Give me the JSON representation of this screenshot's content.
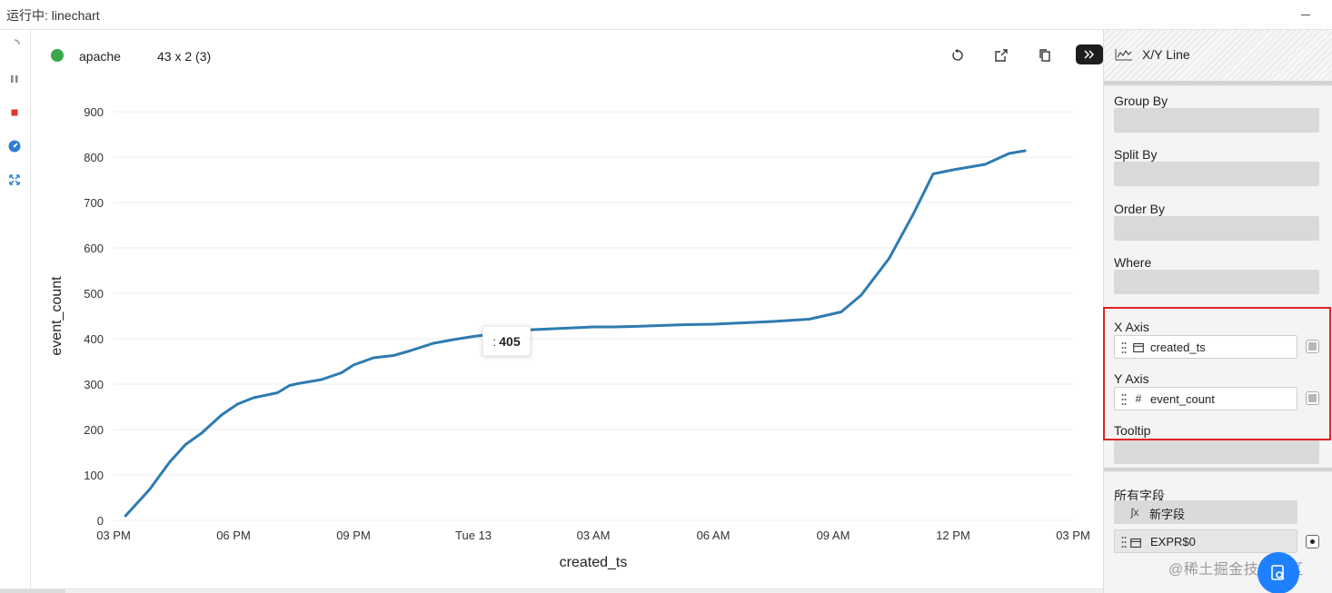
{
  "window": {
    "title": "运行中: linechart"
  },
  "header": {
    "datasource": "apache",
    "shape": "43 x 2 (3)",
    "status_color": "#3aa84a"
  },
  "chart_data": {
    "type": "line",
    "xlabel": "created_ts",
    "ylabel": "event_count",
    "ylim": [
      0,
      900
    ],
    "yticks": [
      "0",
      "100",
      "200",
      "300",
      "400",
      "500",
      "600",
      "700",
      "800",
      "900"
    ],
    "xticks": [
      "03 PM",
      "06 PM",
      "09 PM",
      "Tue 13",
      "03 AM",
      "06 AM",
      "09 AM",
      "12 PM",
      "03 PM"
    ],
    "xlim_hours": [
      0,
      24
    ],
    "grid": true,
    "series": [
      {
        "color": "#2e7bb0",
        "x": [
          0.3,
          0.9,
          1.4,
          1.8,
          2.2,
          2.7,
          3.1,
          3.5,
          4.1,
          4.4,
          4.6,
          5.2,
          5.7,
          6.0,
          6.5,
          7.0,
          7.4,
          8.0,
          8.5,
          9.0,
          10.0,
          10.5,
          11.5,
          12.0,
          12.5,
          13.0,
          14.3,
          15.0,
          15.5,
          16.5,
          17.4,
          18.2,
          18.7,
          19.4,
          20.0,
          20.5,
          21.0,
          21.8,
          22.4,
          22.8
        ],
        "y": [
          10,
          68,
          128,
          167,
          192,
          232,
          256,
          270,
          281,
          297,
          301,
          310,
          325,
          342,
          358,
          363,
          373,
          390,
          398,
          405,
          416,
          420,
          424,
          426,
          426,
          427,
          431,
          432,
          434,
          438,
          443,
          459,
          496,
          577,
          674,
          763,
          772,
          784,
          808,
          814
        ]
      }
    ],
    "tooltip": {
      "separator": ":",
      "value": "405"
    }
  },
  "config": {
    "plugin": "X/Y Line",
    "group_by": "Group By",
    "split_by": "Split By",
    "order_by": "Order By",
    "where": "Where",
    "x_axis": {
      "label": "X Axis",
      "field": "created_ts",
      "type_icon": "calendar-icon"
    },
    "y_axis": {
      "label": "Y Axis",
      "field": "event_count",
      "type_glyph": "#"
    },
    "tooltip": "Tooltip",
    "all_fields": {
      "label": "所有字段",
      "new_field": "新字段",
      "new_field_glyph": "ʃx",
      "items": [
        {
          "name": "EXPR$0",
          "type_icon": "calendar-icon"
        }
      ]
    }
  },
  "overlay": {
    "highlight_color": "#e02424",
    "watermark": "@稀土掘金技术社区",
    "fab_color": "#1e80ff"
  }
}
